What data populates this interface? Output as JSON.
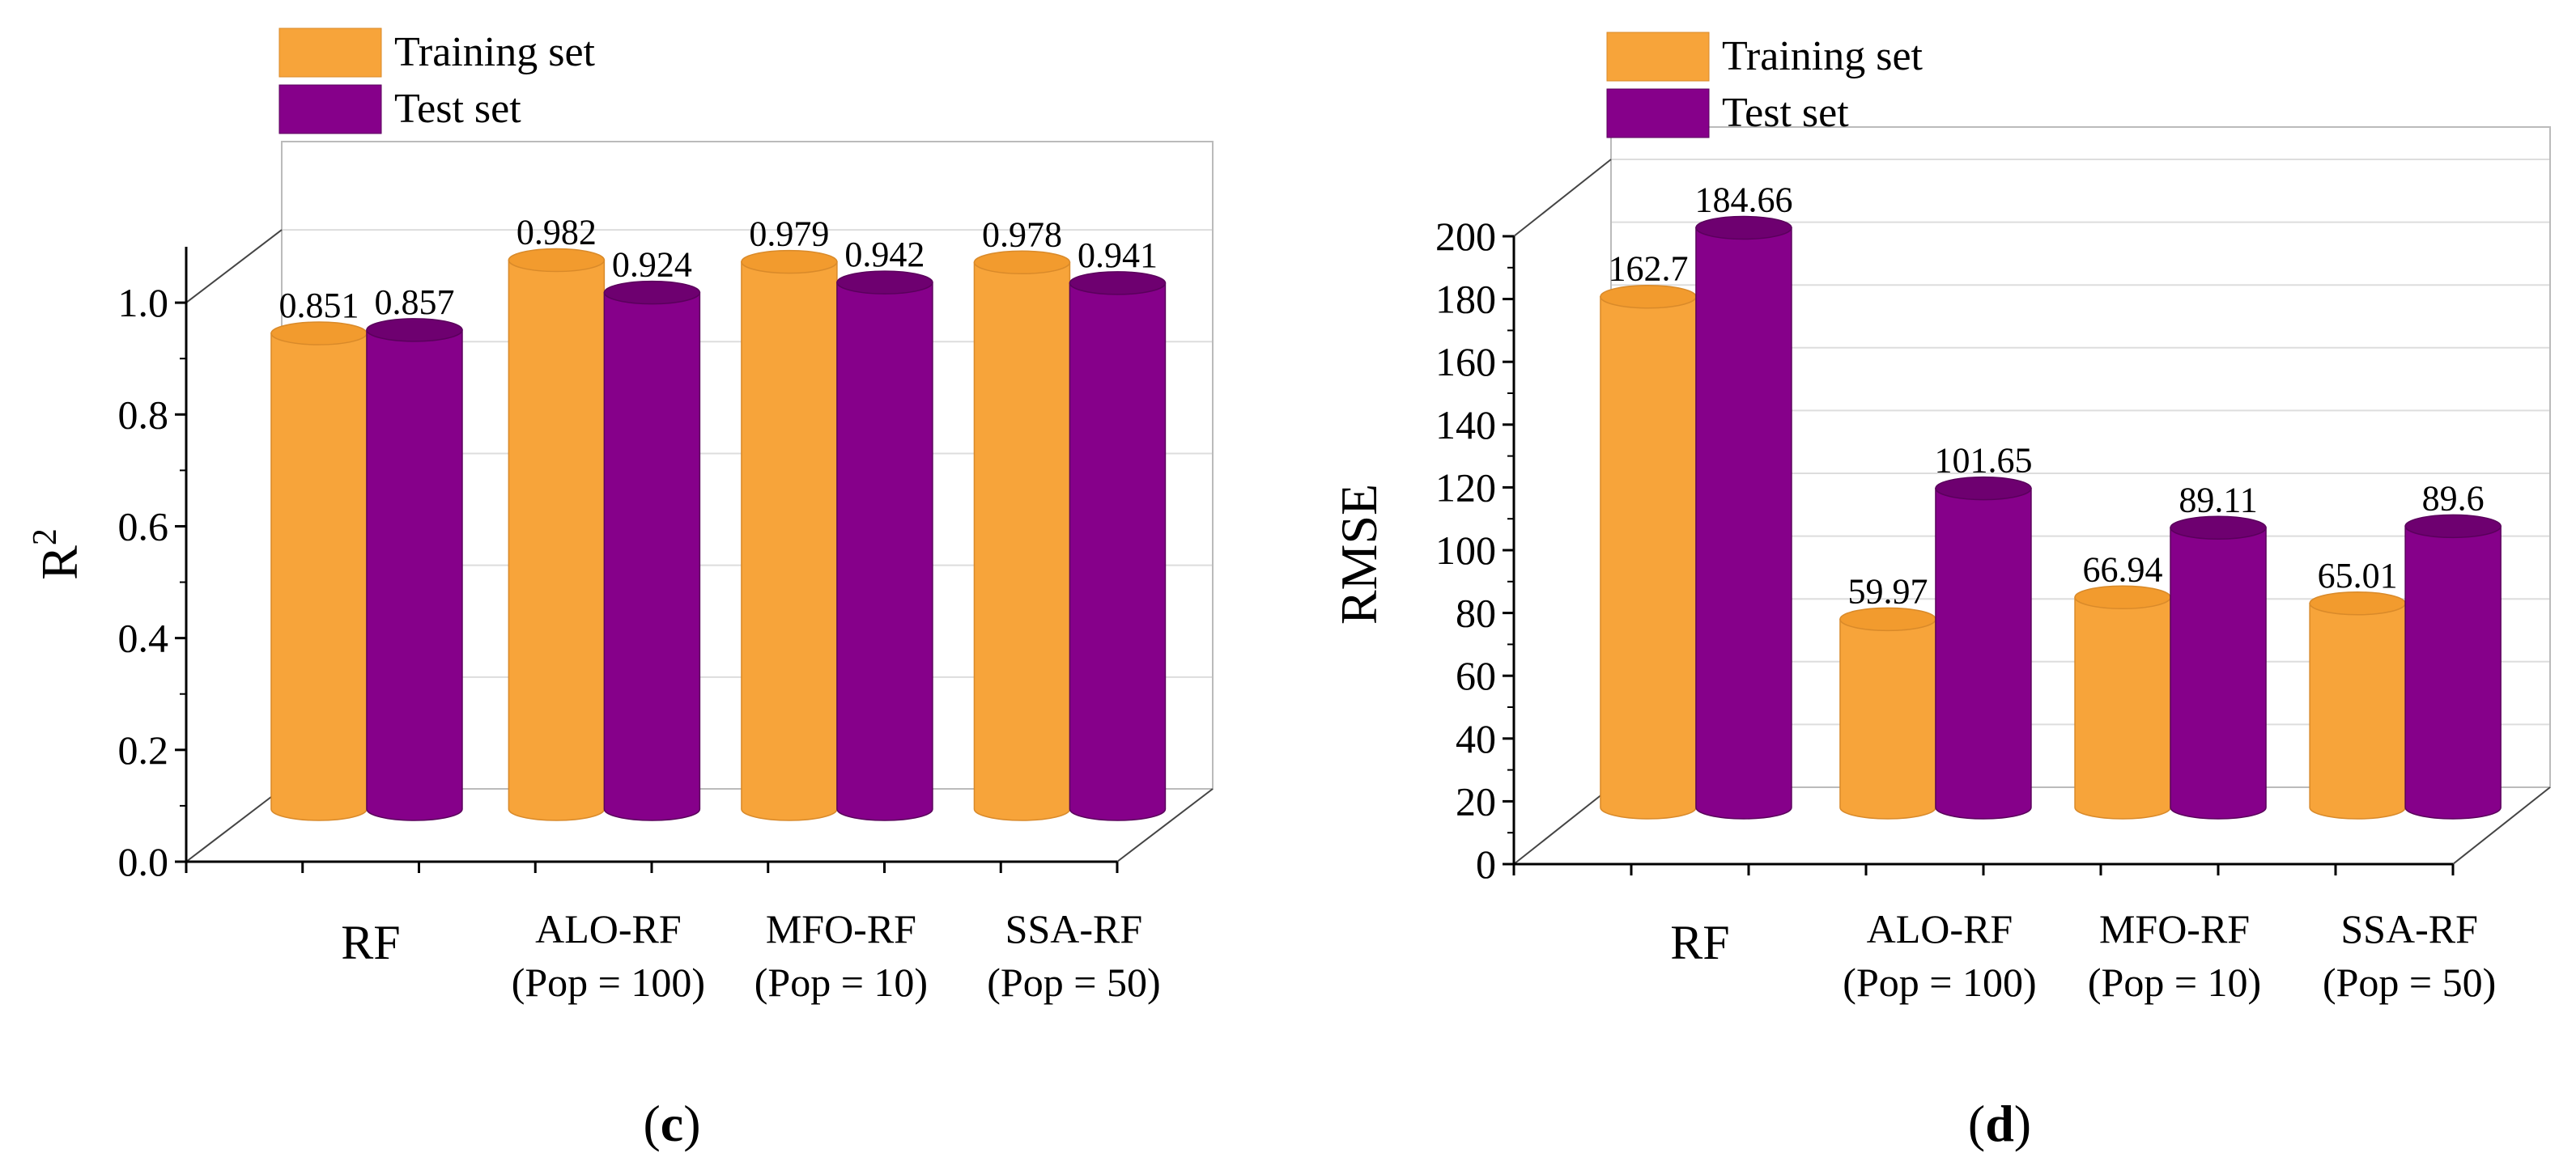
{
  "colors": {
    "training": "#F7A43A",
    "training_top": "#F29B2E",
    "training_edge": "#D98A2A",
    "test": "#86008A",
    "test_top": "#6E0070",
    "test_edge": "#5A005C",
    "grid": "#DDDDDD",
    "axis": "#000000"
  },
  "chart_data": [
    {
      "type": "bar",
      "panel_label": "(c)",
      "panel_letter": "c",
      "ylabel": "R",
      "ylabel_sup": "2",
      "xlabel": "",
      "ylim": [
        0,
        1.1
      ],
      "y_ticks": [
        0.0,
        0.2,
        0.4,
        0.6,
        0.8,
        1.0
      ],
      "y_tick_labels": [
        "0.0",
        "0.2",
        "0.4",
        "0.6",
        "0.8",
        "1.0"
      ],
      "categories": [
        [
          "RF"
        ],
        [
          "ALO-RF",
          "(Pop = 100)"
        ],
        [
          "MFO-RF",
          "(Pop = 10)"
        ],
        [
          "SSA-RF",
          "(Pop = 50)"
        ]
      ],
      "series": [
        {
          "name": "Training set",
          "values": [
            0.851,
            0.982,
            0.979,
            0.978
          ],
          "labels": [
            "0.851",
            "0.982",
            "0.979",
            "0.978"
          ]
        },
        {
          "name": "Test set",
          "values": [
            0.857,
            0.924,
            0.942,
            0.941
          ],
          "labels": [
            "0.857",
            "0.924",
            "0.942",
            "0.941"
          ]
        }
      ],
      "legend": "top-left"
    },
    {
      "type": "bar",
      "panel_label": "(d)",
      "panel_letter": "d",
      "ylabel": "RMSE",
      "ylabel_sup": "",
      "xlabel": "",
      "ylim": [
        0,
        200
      ],
      "y_ticks": [
        0,
        20,
        40,
        60,
        80,
        100,
        120,
        140,
        160,
        180,
        200
      ],
      "y_tick_labels": [
        "0",
        "20",
        "40",
        "60",
        "80",
        "100",
        "120",
        "140",
        "160",
        "180",
        "200"
      ],
      "categories": [
        [
          "RF"
        ],
        [
          "ALO-RF",
          "(Pop = 100)"
        ],
        [
          "MFO-RF",
          "(Pop = 10)"
        ],
        [
          "SSA-RF",
          "(Pop = 50)"
        ]
      ],
      "series": [
        {
          "name": "Training set",
          "values": [
            162.7,
            59.97,
            66.94,
            65.01
          ],
          "labels": [
            "162.7",
            "59.97",
            "66.94",
            "65.01"
          ]
        },
        {
          "name": "Test set",
          "values": [
            184.66,
            101.65,
            89.11,
            89.6
          ],
          "labels": [
            "184.66",
            "101.65",
            "89.11",
            "89.6"
          ]
        }
      ],
      "legend": "top-left"
    }
  ]
}
